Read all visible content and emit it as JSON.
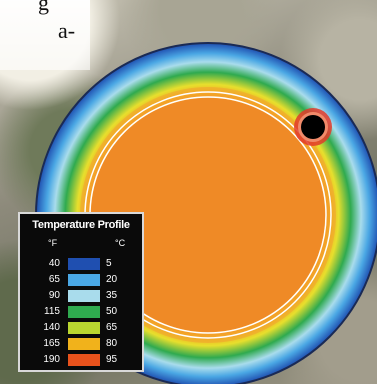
{
  "page_fragment": {
    "line1": "g",
    "line2": "a-"
  },
  "legend": {
    "title": "Temperature Profile",
    "unit_f": "°F",
    "unit_c": "°C",
    "entries": [
      {
        "f": "40",
        "c": "5",
        "color": "#1f4fb0"
      },
      {
        "f": "65",
        "c": "20",
        "color": "#4aa7e4"
      },
      {
        "f": "90",
        "c": "35",
        "color": "#a9dcec"
      },
      {
        "f": "115",
        "c": "50",
        "color": "#2faa4f"
      },
      {
        "f": "140",
        "c": "65",
        "color": "#b9d630"
      },
      {
        "f": "165",
        "c": "80",
        "color": "#f1b21b"
      },
      {
        "f": "190",
        "c": "95",
        "color": "#e8521c"
      }
    ]
  },
  "colors": {
    "core": "#ef8a26",
    "ring_blue": "#1f4fb0",
    "ring_cyan": "#4aa7e4",
    "ring_light": "#a9dcec",
    "ring_green": "#2faa4f",
    "ring_yellow": "#e7df2d",
    "ring_orange": "#f4a41e",
    "boundary": "#ffffff",
    "hole": "#000000",
    "hole_halo": "#e23a2a"
  }
}
